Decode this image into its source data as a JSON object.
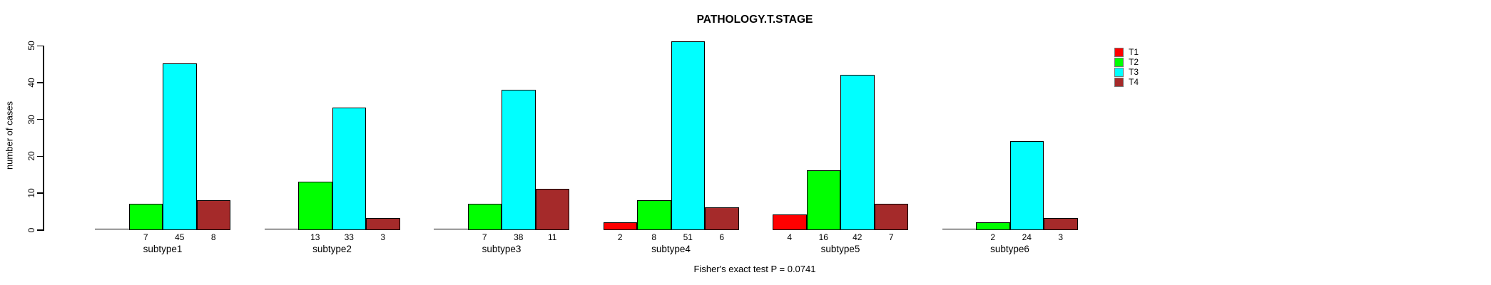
{
  "title": "PATHOLOGY.T.STAGE",
  "caption": "Fisher's exact test P = 0.0741",
  "chart_data": {
    "type": "bar",
    "title": "PATHOLOGY.T.STAGE",
    "xlabel": "",
    "ylabel": "number of cases",
    "ylim": [
      0,
      50
    ],
    "yticks": [
      0,
      10,
      20,
      30,
      40,
      50
    ],
    "grid": false,
    "legend_position": "top-right",
    "bar_value_labels": "shown below each bar for nonzero values",
    "categories": [
      "subtype1",
      "subtype2",
      "subtype3",
      "subtype4",
      "subtype5",
      "subtype6"
    ],
    "series": [
      {
        "name": "T1",
        "color": "#FF0000",
        "values": [
          0,
          0,
          0,
          2,
          4,
          0
        ]
      },
      {
        "name": "T2",
        "color": "#00FF00",
        "values": [
          7,
          13,
          7,
          8,
          16,
          2
        ]
      },
      {
        "name": "T3",
        "color": "#00FFFF",
        "values": [
          45,
          33,
          38,
          51,
          42,
          24
        ]
      },
      {
        "name": "T4",
        "color": "#A52A2A",
        "values": [
          8,
          3,
          11,
          6,
          7,
          3
        ]
      }
    ],
    "annotation": "Fisher's exact test P = 0.0741"
  }
}
